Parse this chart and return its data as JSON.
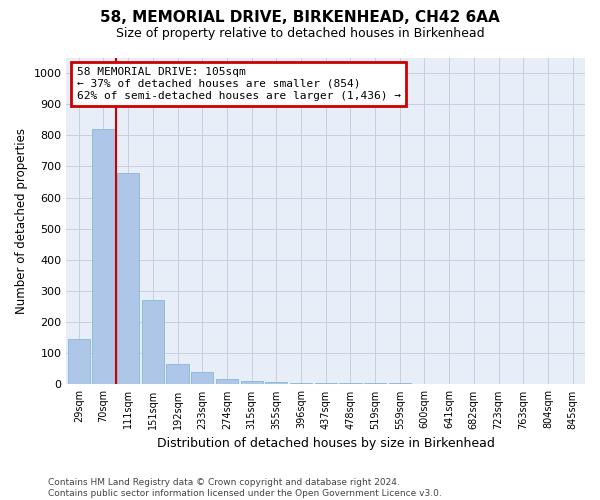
{
  "title": "58, MEMORIAL DRIVE, BIRKENHEAD, CH42 6AA",
  "subtitle": "Size of property relative to detached houses in Birkenhead",
  "xlabel": "Distribution of detached houses by size in Birkenhead",
  "ylabel": "Number of detached properties",
  "annotation_line1": "58 MEMORIAL DRIVE: 105sqm",
  "annotation_line2": "← 37% of detached houses are smaller (854)",
  "annotation_line3": "62% of semi-detached houses are larger (1,436) →",
  "bar_color": "#aec6e8",
  "bar_edge_color": "#7bafd4",
  "marker_color": "#cc0000",
  "annotation_box_color": "#cc0000",
  "categories": [
    "29sqm",
    "70sqm",
    "111sqm",
    "151sqm",
    "192sqm",
    "233sqm",
    "274sqm",
    "315sqm",
    "355sqm",
    "396sqm",
    "437sqm",
    "478sqm",
    "519sqm",
    "559sqm",
    "600sqm",
    "641sqm",
    "682sqm",
    "723sqm",
    "763sqm",
    "804sqm",
    "845sqm"
  ],
  "values": [
    145,
    820,
    680,
    270,
    65,
    40,
    18,
    10,
    8,
    6,
    4,
    3,
    3,
    3,
    2,
    2,
    2,
    2,
    1,
    1,
    2
  ],
  "ylim": [
    0,
    1050
  ],
  "yticks": [
    0,
    100,
    200,
    300,
    400,
    500,
    600,
    700,
    800,
    900,
    1000
  ],
  "marker_bar_index": 1,
  "footer_line1": "Contains HM Land Registry data © Crown copyright and database right 2024.",
  "footer_line2": "Contains public sector information licensed under the Open Government Licence v3.0.",
  "bg_color": "#e8eef8",
  "grid_color": "#c8d0e0"
}
